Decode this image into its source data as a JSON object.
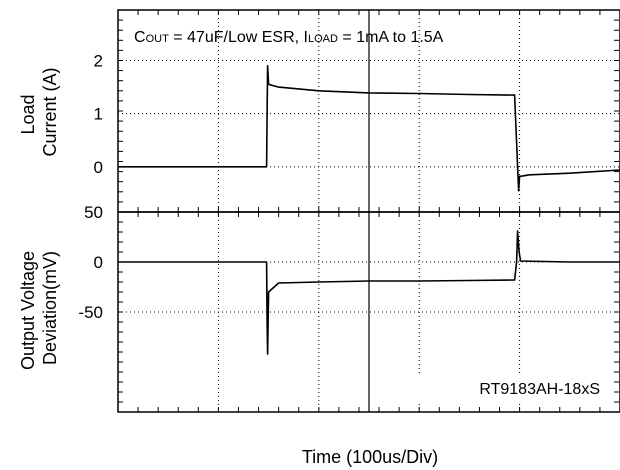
{
  "chart_data": {
    "type": "line",
    "annotation": {
      "c": "C",
      "c_sub": "OUT",
      "mid": " = 47uF/Low ESR, I",
      "i_sub": "LOAD",
      "tail": " = 1mA to 1.5A"
    },
    "watermark": "RT9183AH-18xS",
    "xlabel": "Time  (100us/Div)",
    "x_divisions": 5,
    "panels": [
      {
        "name": "load-current",
        "ylabel_lines": [
          "Load",
          "Current (A)"
        ],
        "unit": "A",
        "ylim": [
          -0.85,
          2.95
        ],
        "yticks": [
          {
            "value": 2,
            "label": "2"
          },
          {
            "value": 1,
            "label": "1"
          },
          {
            "value": 0,
            "label": "0"
          }
        ],
        "top_label": {
          "value": 2.95,
          "label": ""
        },
        "trace": [
          [
            0.0,
            0.0
          ],
          [
            0.5,
            0.0
          ],
          [
            1.0,
            0.0
          ],
          [
            1.48,
            0.0
          ],
          [
            1.485,
            1.0
          ],
          [
            1.49,
            1.9
          ],
          [
            1.5,
            1.55
          ],
          [
            1.6,
            1.5
          ],
          [
            2.0,
            1.43
          ],
          [
            2.5,
            1.39
          ],
          [
            3.0,
            1.38
          ],
          [
            3.5,
            1.36
          ],
          [
            3.95,
            1.35
          ],
          [
            3.98,
            0.0
          ],
          [
            3.99,
            -0.45
          ],
          [
            4.0,
            -0.18
          ],
          [
            4.1,
            -0.15
          ],
          [
            4.5,
            -0.12
          ],
          [
            5.0,
            -0.06
          ]
        ]
      },
      {
        "name": "output-voltage-deviation",
        "ylabel_lines": [
          "Output Voltage",
          "Deviation(mV)"
        ],
        "unit": "mV",
        "ylim": [
          -150,
          50
        ],
        "yticks": [
          {
            "value": 50,
            "label": "50"
          },
          {
            "value": 0,
            "label": "0"
          },
          {
            "value": -50,
            "label": "-50"
          }
        ],
        "trace": [
          [
            0.0,
            0.0
          ],
          [
            0.5,
            0.0
          ],
          [
            1.0,
            0.0
          ],
          [
            1.48,
            0.0
          ],
          [
            1.485,
            -60
          ],
          [
            1.49,
            -92
          ],
          [
            1.5,
            -30
          ],
          [
            1.6,
            -21
          ],
          [
            2.0,
            -20
          ],
          [
            2.5,
            -19
          ],
          [
            3.0,
            -19
          ],
          [
            3.5,
            -18.5
          ],
          [
            3.95,
            -18
          ],
          [
            3.97,
            0
          ],
          [
            3.98,
            31
          ],
          [
            3.995,
            10
          ],
          [
            4.01,
            1
          ],
          [
            4.5,
            0
          ],
          [
            5.0,
            0
          ]
        ]
      }
    ]
  }
}
